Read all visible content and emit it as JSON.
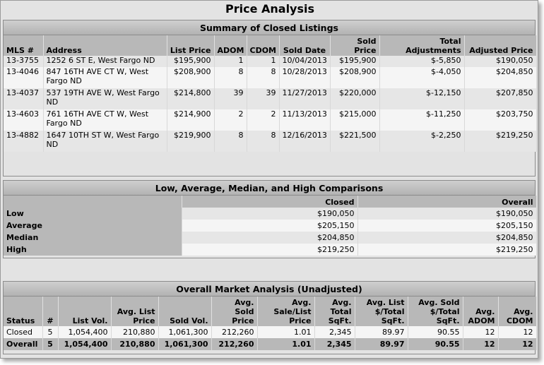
{
  "title": "Price Analysis",
  "summary": {
    "title": "Summary of Closed Listings",
    "headers": [
      "MLS #",
      "Address",
      "List Price",
      "ADOM",
      "CDOM",
      "Sold Date",
      "Sold Price",
      "Total Adjustments",
      "Adjusted Price"
    ],
    "rows": [
      [
        "13-3755",
        "1252 6 ST E, West Fargo ND",
        "$195,900",
        "1",
        "1",
        "10/04/2013",
        "$195,900",
        "$-5,850",
        "$190,050"
      ],
      [
        "13-4046",
        "847 16TH AVE CT W, West Fargo ND",
        "$208,900",
        "8",
        "8",
        "10/28/2013",
        "$208,900",
        "$-4,050",
        "$204,850"
      ],
      [
        "13-4037",
        "537 19TH AVE W, West Fargo ND",
        "$214,800",
        "39",
        "39",
        "11/27/2013",
        "$220,000",
        "$-12,150",
        "$207,850"
      ],
      [
        "13-4603",
        "761 16TH AVE CT W, West Fargo ND",
        "$214,900",
        "2",
        "2",
        "11/13/2013",
        "$215,000",
        "$-11,250",
        "$203,750"
      ],
      [
        "13-4882",
        "1647 10TH ST W, West Fargo ND",
        "$219,900",
        "8",
        "8",
        "12/16/2013",
        "$221,500",
        "$-2,250",
        "$219,250"
      ]
    ]
  },
  "comparisons": {
    "title": "Low, Average, Median, and High Comparisons",
    "headers": [
      "",
      "Closed",
      "Overall"
    ],
    "rows": [
      [
        "Low",
        "$190,050",
        "$190,050"
      ],
      [
        "Average",
        "$205,150",
        "$205,150"
      ],
      [
        "Median",
        "$204,850",
        "$204,850"
      ],
      [
        "High",
        "$219,250",
        "$219,250"
      ]
    ]
  },
  "market": {
    "title": "Overall Market Analysis (Unadjusted)",
    "headers": [
      "Status",
      "#",
      "List Vol.",
      "Avg. List Price",
      "Sold Vol.",
      "Avg. Sold Price",
      "Avg. Sale/List Price",
      "Avg. Total SqFt.",
      "Avg. List $/Total SqFt.",
      "Avg. Sold $/Total SqFt.",
      "Avg. ADOM",
      "Avg. CDOM"
    ],
    "rows": [
      [
        "Closed",
        "5",
        "1,054,400",
        "210,880",
        "1,061,300",
        "212,260",
        "1.01",
        "2,345",
        "89.97",
        "90.55",
        "12",
        "12"
      ]
    ],
    "total": [
      "Overall",
      "5",
      "1,054,400",
      "210,880",
      "1,061,300",
      "212,260",
      "1.01",
      "2,345",
      "89.97",
      "90.55",
      "12",
      "12"
    ]
  }
}
